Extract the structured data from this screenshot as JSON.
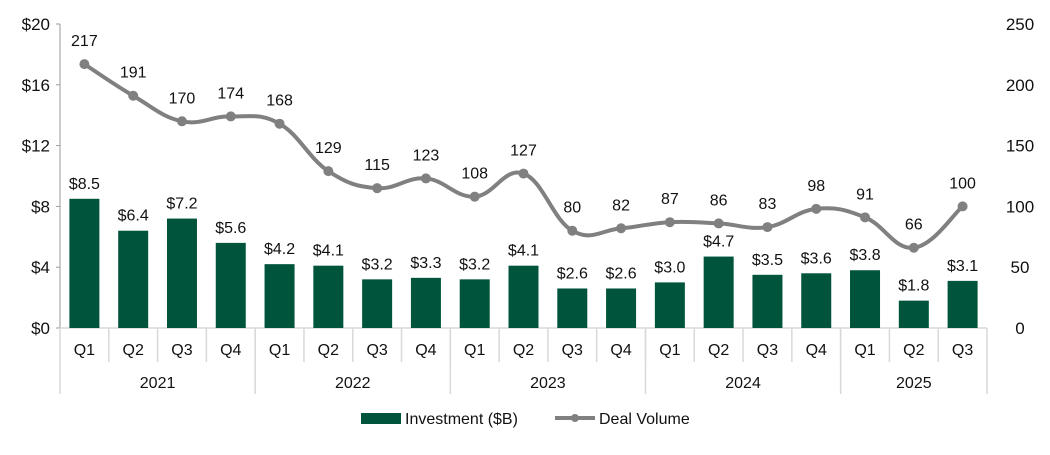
{
  "chart_data": {
    "type": "bar+line",
    "categories": [
      "Q1",
      "Q2",
      "Q3",
      "Q4",
      "Q1",
      "Q2",
      "Q3",
      "Q4",
      "Q1",
      "Q2",
      "Q3",
      "Q4",
      "Q1",
      "Q2",
      "Q3",
      "Q4",
      "Q1",
      "Q2",
      "Q3"
    ],
    "groups": [
      {
        "label": "2021",
        "count": 4
      },
      {
        "label": "2022",
        "count": 4
      },
      {
        "label": "2023",
        "count": 4
      },
      {
        "label": "2024",
        "count": 4
      },
      {
        "label": "2025",
        "count": 3
      }
    ],
    "series": [
      {
        "name": "Investment ($B)",
        "type": "bar",
        "axis": "left",
        "color": "#00543c",
        "values": [
          8.5,
          6.4,
          7.2,
          5.6,
          4.2,
          4.1,
          3.2,
          3.3,
          3.2,
          4.1,
          2.6,
          2.6,
          3.0,
          4.7,
          3.5,
          3.6,
          3.8,
          1.8,
          3.1
        ],
        "labels": [
          "$8.5",
          "$6.4",
          "$7.2",
          "$5.6",
          "$4.2",
          "$4.1",
          "$3.2",
          "$3.3",
          "$3.2",
          "$4.1",
          "$2.6",
          "$2.6",
          "$3.0",
          "$4.7",
          "$3.5",
          "$3.6",
          "$3.8",
          "$1.8",
          "$3.1"
        ]
      },
      {
        "name": "Deal Volume",
        "type": "line",
        "axis": "right",
        "color": "#808080",
        "values": [
          217,
          191,
          170,
          174,
          168,
          129,
          115,
          123,
          108,
          127,
          80,
          82,
          87,
          86,
          83,
          98,
          91,
          66,
          100
        ]
      }
    ],
    "y_left": {
      "range": [
        0,
        20
      ],
      "ticks": [
        "$0",
        "$4",
        "$8",
        "$12",
        "$16",
        "$20"
      ],
      "tick_values": [
        0,
        4,
        8,
        12,
        16,
        20
      ]
    },
    "y_right": {
      "range": [
        0,
        250
      ],
      "ticks": [
        "0",
        "50",
        "100",
        "150",
        "200",
        "250"
      ],
      "tick_values": [
        0,
        50,
        100,
        150,
        200,
        250
      ]
    },
    "grid": false,
    "legend": "bottom-center"
  }
}
